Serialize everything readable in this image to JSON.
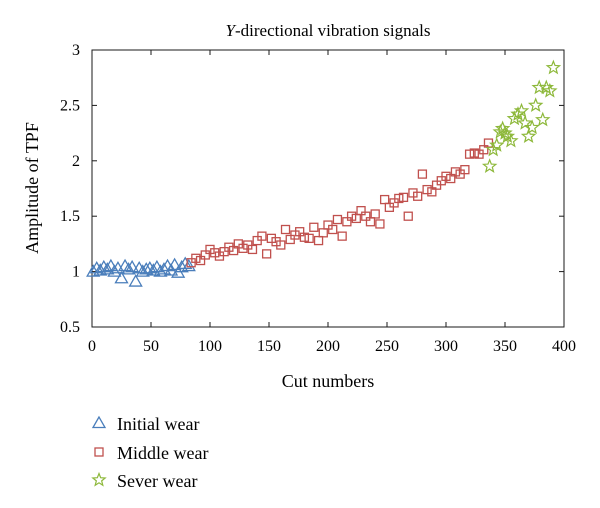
{
  "chart_data": {
    "type": "scatter",
    "title": {
      "prefix": "Y",
      "rest": "-directional vibration signals"
    },
    "xlabel": "Cut numbers",
    "ylabel": "Amplitude of TPF",
    "xlim": [
      0,
      400
    ],
    "ylim": [
      0.5,
      3
    ],
    "xticks": [
      0,
      50,
      100,
      150,
      200,
      250,
      300,
      350,
      400
    ],
    "yticks": [
      0.5,
      1,
      1.5,
      2,
      2.5,
      3
    ],
    "ytick_labels": [
      "0.5",
      "1",
      "1.5",
      "2",
      "2.5",
      "3"
    ],
    "grid": false,
    "legend_position": "below",
    "series": [
      {
        "name": "Initial wear",
        "marker": "triangle",
        "color": "#4a7ebb",
        "x": [
          1,
          4,
          7,
          10,
          13,
          16,
          19,
          22,
          25,
          28,
          31,
          34,
          37,
          40,
          43,
          46,
          49,
          52,
          55,
          58,
          61,
          64,
          67,
          70,
          73,
          76,
          79,
          82
        ],
        "y": [
          1.0,
          1.03,
          1.01,
          1.04,
          1.02,
          1.05,
          1.0,
          1.03,
          0.94,
          1.05,
          1.02,
          1.04,
          0.91,
          1.03,
          1.0,
          1.02,
          1.03,
          1.01,
          1.04,
          1.0,
          1.02,
          1.05,
          1.01,
          1.06,
          0.99,
          1.04,
          1.07,
          1.05
        ]
      },
      {
        "name": "Middle wear",
        "marker": "square",
        "color": "#c0504d",
        "x": [
          84,
          88,
          92,
          96,
          100,
          104,
          108,
          112,
          116,
          120,
          124,
          128,
          132,
          136,
          140,
          144,
          148,
          152,
          156,
          160,
          164,
          168,
          172,
          176,
          180,
          184,
          188,
          192,
          196,
          200,
          204,
          208,
          212,
          216,
          220,
          224,
          228,
          232,
          236,
          240,
          244,
          248,
          252,
          256,
          260,
          264,
          268,
          272,
          276,
          280,
          284,
          288,
          292,
          296,
          300,
          304,
          308,
          312,
          316,
          320,
          324,
          328,
          332,
          336
        ],
        "y": [
          1.08,
          1.12,
          1.1,
          1.15,
          1.2,
          1.17,
          1.14,
          1.18,
          1.22,
          1.19,
          1.25,
          1.21,
          1.24,
          1.2,
          1.28,
          1.32,
          1.16,
          1.3,
          1.27,
          1.24,
          1.38,
          1.29,
          1.33,
          1.36,
          1.31,
          1.3,
          1.4,
          1.28,
          1.35,
          1.42,
          1.38,
          1.47,
          1.32,
          1.45,
          1.5,
          1.48,
          1.55,
          1.5,
          1.45,
          1.52,
          1.43,
          1.65,
          1.58,
          1.62,
          1.66,
          1.67,
          1.5,
          1.71,
          1.68,
          1.88,
          1.74,
          1.72,
          1.78,
          1.82,
          1.86,
          1.84,
          1.9,
          1.88,
          1.92,
          2.06,
          2.07,
          2.06,
          2.1,
          2.16
        ]
      },
      {
        "name": "Sever wear",
        "marker": "star",
        "color": "#8db83a",
        "x": [
          337,
          340,
          343,
          346,
          348,
          350,
          352,
          355,
          358,
          361,
          364,
          367,
          370,
          373,
          376,
          379,
          382,
          385,
          388,
          391
        ],
        "y": [
          1.95,
          2.1,
          2.14,
          2.26,
          2.29,
          2.25,
          2.22,
          2.18,
          2.38,
          2.42,
          2.45,
          2.34,
          2.22,
          2.3,
          2.5,
          2.66,
          2.37,
          2.66,
          2.63,
          2.84
        ]
      }
    ]
  }
}
